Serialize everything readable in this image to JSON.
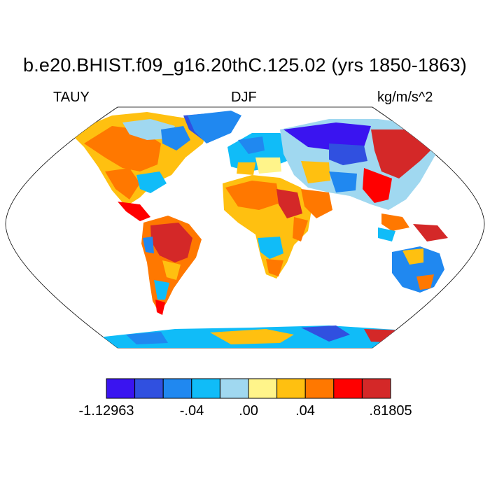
{
  "title": "b.e20.BHIST.f09_g16.20thC.125.02 (yrs 1850-1863)",
  "left_label": "TAUY",
  "center_label": "DJF",
  "right_label": "kg/m/s^2",
  "colorbar": {
    "colors": [
      "#3a14f0",
      "#3050e0",
      "#2088f0",
      "#10bcf8",
      "#a0d8f0",
      "#fff48a",
      "#ffc010",
      "#ff7800",
      "#ff0000",
      "#d42828"
    ],
    "labels": [
      "-1.12963",
      "-.04",
      ".00",
      ".04",
      ".81805"
    ]
  }
}
